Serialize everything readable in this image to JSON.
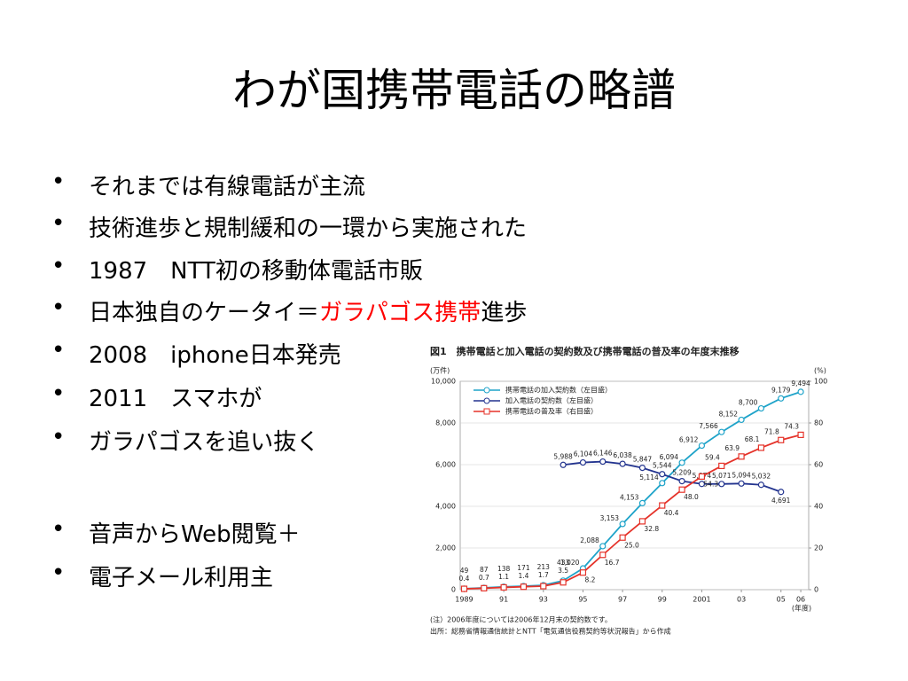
{
  "title": "わが国携帯電話の略譜",
  "bullets": [
    [
      "それまでは有線電話が主流"
    ],
    [
      "技術進歩と規制緩和の一環から実施された"
    ],
    [
      "1987　NTT初の移動体電話市販"
    ],
    [
      "日本独自のケータイ＝",
      {
        "text": "ガラパゴス携帯",
        "color": "#ff0000"
      },
      "進歩"
    ],
    [
      "2008　iphone日本発売"
    ],
    [
      "2011　スマホが"
    ],
    [
      "ガラパゴスを追い抜く"
    ],
    [
      "音声からWeb閲覧＋"
    ],
    [
      "電子メール利用主"
    ]
  ],
  "chart_data": {
    "type": "line",
    "title": "図1　携帯電話と加入電話の契約数及び携帯電話の普及率の年度末推移",
    "y_label": "(万件)",
    "y2_label": "(%)",
    "x_label": "(年度)",
    "notes": [
      "(注）2006年度については2006年12月末の契約数です。",
      "出所：総務省情報通信統計とNTT「電気通信役務契約等状況報告」から作成"
    ],
    "x": [
      1989,
      1990,
      1991,
      1992,
      1993,
      1994,
      1995,
      1996,
      1997,
      1998,
      1999,
      2000,
      2001,
      2002,
      2003,
      2004,
      2005,
      2006
    ],
    "xlim": [
      1988.8,
      2006.4
    ],
    "xticks": [
      {
        "value": 1989,
        "label": "1989"
      },
      {
        "value": 1991,
        "label": "91"
      },
      {
        "value": 1993,
        "label": "93"
      },
      {
        "value": 1995,
        "label": "95"
      },
      {
        "value": 1997,
        "label": "97"
      },
      {
        "value": 1999,
        "label": "99"
      },
      {
        "value": 2001,
        "label": "2001"
      },
      {
        "value": 2003,
        "label": "03"
      },
      {
        "value": 2005,
        "label": "05"
      },
      {
        "value": 2006,
        "label": "06"
      }
    ],
    "ylim": [
      0,
      10000
    ],
    "yticks": [
      0,
      {
        "value": 2000,
        "label": "2,000"
      },
      {
        "value": 4000,
        "label": "4,000"
      },
      {
        "value": 6000,
        "label": "6,000"
      },
      {
        "value": 8000,
        "label": "8,000"
      },
      {
        "value": 10000,
        "label": "10,000"
      }
    ],
    "y2lim": [
      0,
      100
    ],
    "y2ticks": [
      0,
      20,
      40,
      60,
      80,
      100
    ],
    "legend": "upper left",
    "series": [
      {
        "name": "携帯電話の加入契約数（左目盛）",
        "color": "#1ea3c9",
        "marker": "circle",
        "values": [
          49,
          87,
          138,
          171,
          213,
          433,
          1020,
          2088,
          3153,
          4153,
          5114,
          6094,
          6912,
          7566,
          8152,
          8700,
          9179,
          9494
        ],
        "value_labels": [
          "49",
          "87",
          "138",
          "171",
          "213",
          "433",
          "1,020",
          "2,088",
          "3,153",
          "4,153",
          "5,114",
          "6,094",
          "6,912",
          "7,566",
          "8,152",
          "8,700",
          "9,179",
          "9,494"
        ]
      },
      {
        "name": "加入電話の契約数（左目盛）",
        "color": "#23348f",
        "marker": "circle",
        "values": [
          null,
          null,
          null,
          null,
          null,
          5988,
          6104,
          6146,
          6038,
          5847,
          5544,
          5209,
          5074,
          5071,
          5094,
          5032,
          4691,
          null
        ],
        "value_labels": [
          null,
          null,
          null,
          null,
          null,
          "5,988",
          "6,104",
          "6,146",
          "6,038",
          "5,847",
          "5,544",
          "5,209",
          "5,074",
          "5,071",
          "5,094",
          "5,032",
          "4,691",
          null
        ]
      },
      {
        "name": "携帯電話の普及率（右目盛）",
        "color": "#e5332a",
        "marker": "square",
        "axis": "y2",
        "values": [
          0.4,
          0.7,
          1.1,
          1.4,
          1.7,
          3.5,
          8.2,
          16.7,
          25.0,
          32.8,
          40.4,
          48.0,
          54.3,
          59.4,
          63.9,
          68.1,
          71.8,
          74.3
        ],
        "value_labels": [
          "0.4",
          "0.7",
          "1.1",
          "1.4",
          "1.7",
          "3.5",
          "8.2",
          "16.7",
          "25.0",
          "32.8",
          "40.4",
          "48.0",
          "54.3",
          "59.4",
          "63.9",
          "68.1",
          "71.8",
          "74.3"
        ]
      }
    ]
  }
}
